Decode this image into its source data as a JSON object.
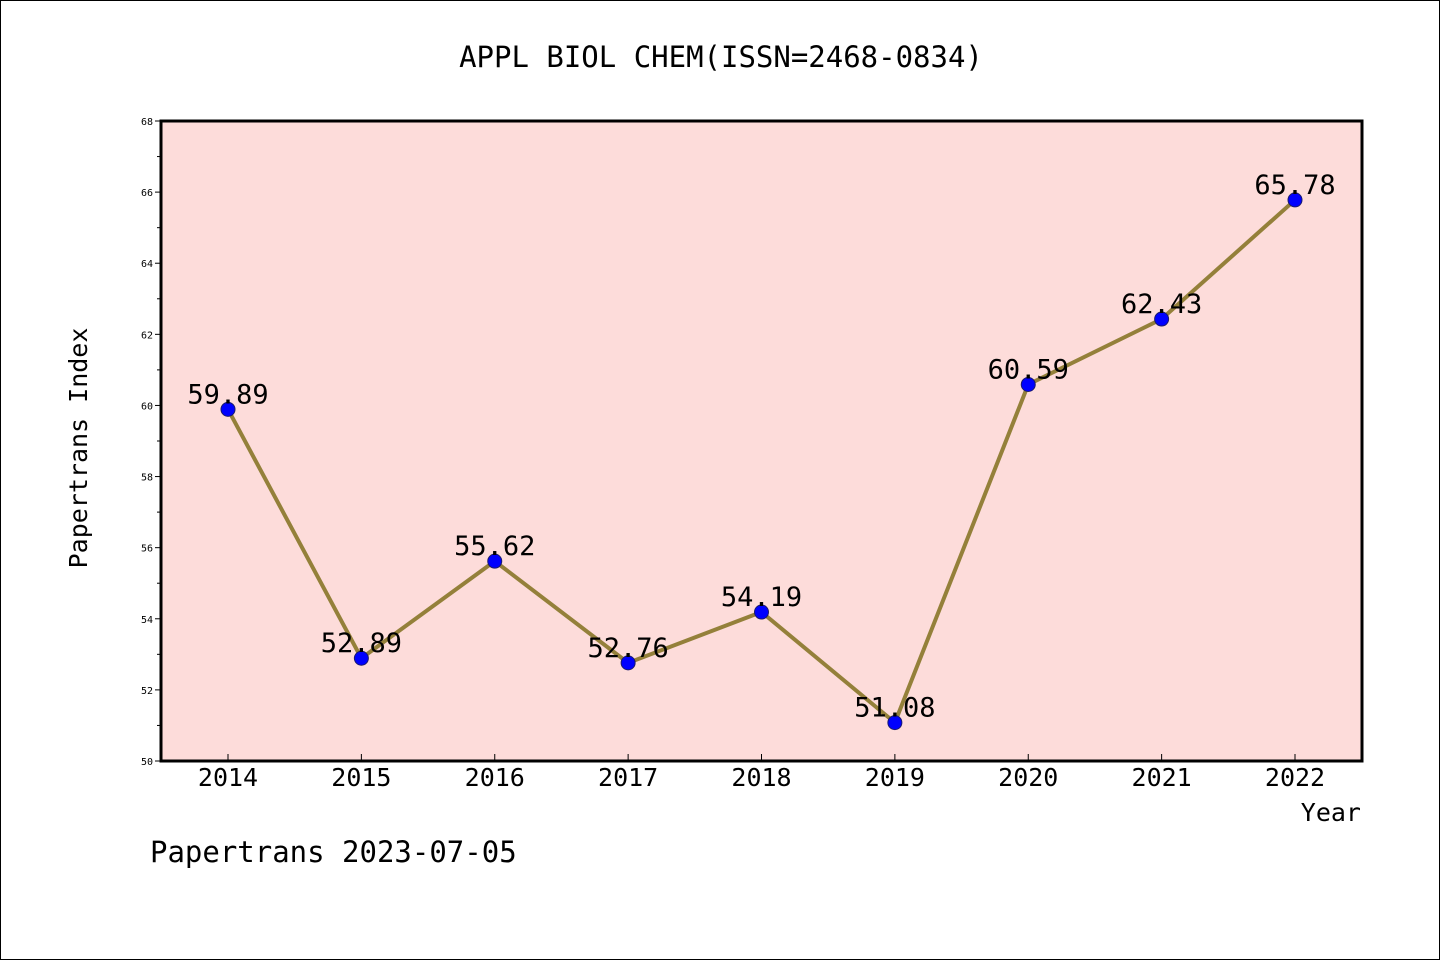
{
  "footer_text": "Papertrans 2023-07-05",
  "colors": {
    "plot_background": "#fddcda",
    "line": "#94803a",
    "marker": "#0000ff",
    "marker_edge": "#1a1a6e",
    "axis": "#000000"
  },
  "chart_data": {
    "type": "line",
    "title": "APPL BIOL CHEM(ISSN=2468-0834)",
    "xlabel": "Year",
    "ylabel": "Papertrans Index",
    "categories": [
      "2014",
      "2015",
      "2016",
      "2017",
      "2018",
      "2019",
      "2020",
      "2021",
      "2022"
    ],
    "series": [
      {
        "values": [
          59.89,
          52.89,
          55.62,
          52.76,
          54.19,
          51.08,
          60.59,
          62.43,
          65.78
        ],
        "labels": [
          "59.89",
          "52.89",
          "55.62",
          "52.76",
          "54.19",
          "51.08",
          "60.59",
          "62.43",
          "65.78"
        ]
      }
    ],
    "ylim": [
      50,
      68
    ],
    "yticks": [
      50,
      52,
      54,
      56,
      58,
      60,
      62,
      64,
      66,
      68
    ],
    "ytick_labels": [
      "50",
      "52",
      "54",
      "56",
      "58",
      "60",
      "62",
      "64",
      "66",
      "68"
    ],
    "grid": false,
    "legend": "none"
  }
}
